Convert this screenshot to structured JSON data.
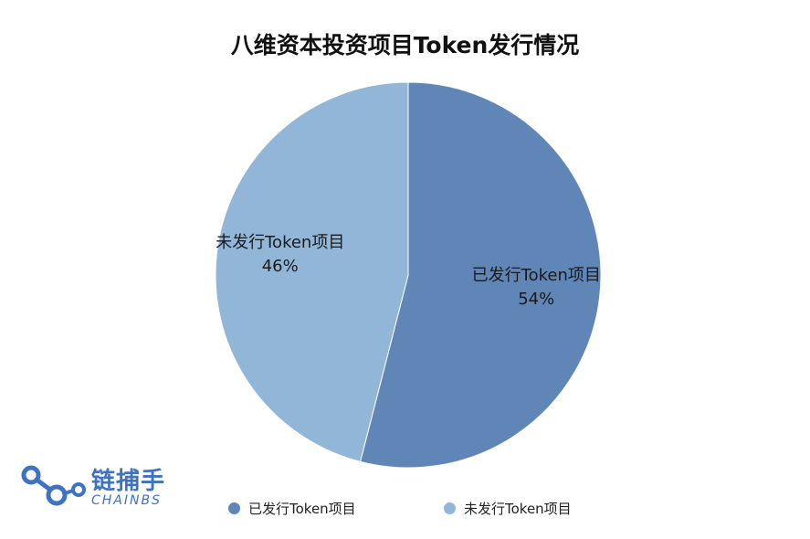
{
  "chart_data": {
    "type": "pie",
    "title": "八维资本投资项目Token发行情况",
    "slices": [
      {
        "label": "已发行Token项目",
        "value": 54,
        "value_label": "54%",
        "color": "#5f86b7"
      },
      {
        "label": "未发行Token项目",
        "value": 46,
        "value_label": "46%",
        "color": "#92b6d8"
      }
    ],
    "legend_placement": "bottom"
  },
  "logo": {
    "cn": "链捕手",
    "en": "CHAINBS"
  }
}
